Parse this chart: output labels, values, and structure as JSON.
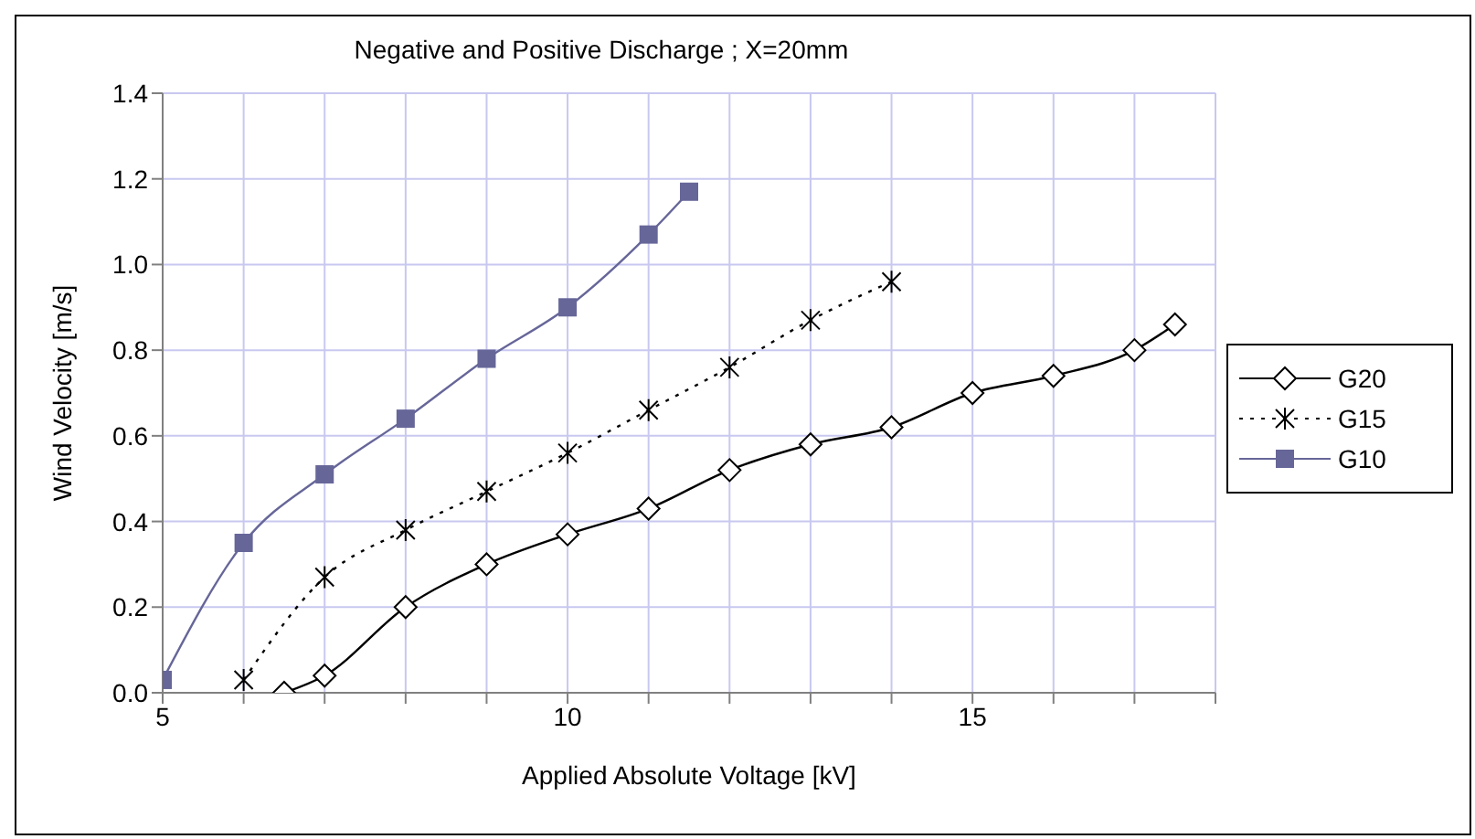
{
  "chart_data": {
    "type": "line",
    "title": "Negative and Positive Discharge ; X=20mm",
    "xlabel": "Applied Absolute Voltage [kV]",
    "ylabel": "Wind  Velocity [m/s]",
    "xlim": [
      5,
      18
    ],
    "xticks": [
      5,
      {
        "value": 6,
        "label": null
      },
      {
        "value": 7,
        "label": null
      },
      {
        "value": 8,
        "label": null
      },
      {
        "value": 9,
        "label": null
      },
      10,
      {
        "value": 11,
        "label": null
      },
      {
        "value": 12,
        "label": null
      },
      {
        "value": 13,
        "label": null
      },
      {
        "value": 14,
        "label": null
      },
      15,
      {
        "value": 16,
        "label": null
      },
      {
        "value": 17,
        "label": null
      },
      {
        "value": 18,
        "label": null
      }
    ],
    "ylim": [
      0,
      1.4
    ],
    "yticks": [
      {
        "value": 0,
        "label": "0.0"
      },
      {
        "value": 0.2,
        "label": "0.2"
      },
      {
        "value": 0.4,
        "label": "0.4"
      },
      {
        "value": 0.6,
        "label": "0.6"
      },
      {
        "value": 0.8,
        "label": "0.8"
      },
      {
        "value": 1,
        "label": "1.0"
      },
      {
        "value": 1.2,
        "label": "1.2"
      },
      {
        "value": 1.4,
        "label": "1.4"
      }
    ],
    "grid": true,
    "legend": "right",
    "series": [
      {
        "name": "G20",
        "color": "#000000",
        "marker": "diamond",
        "line_style": "solid",
        "x": [
          6.5,
          7,
          8,
          9,
          10,
          11,
          12,
          13,
          14,
          15,
          16,
          17,
          17.5
        ],
        "values": [
          0.0,
          0.04,
          0.2,
          0.3,
          0.37,
          0.43,
          0.52,
          0.58,
          0.62,
          0.7,
          0.74,
          0.8,
          0.86
        ]
      },
      {
        "name": "G15",
        "color": "#000000",
        "marker": "cross",
        "line_style": "dotted",
        "x": [
          6,
          7,
          8,
          9,
          10,
          11,
          12,
          13,
          14
        ],
        "values": [
          0.03,
          0.27,
          0.38,
          0.47,
          0.56,
          0.66,
          0.76,
          0.87,
          0.96
        ]
      },
      {
        "name": "G10",
        "color": "#666699",
        "marker": "square",
        "line_style": "solid",
        "x": [
          5,
          6,
          7,
          8,
          9,
          10,
          11,
          11.5
        ],
        "values": [
          0.03,
          0.35,
          0.51,
          0.64,
          0.78,
          0.9,
          1.07,
          1.17
        ]
      }
    ]
  }
}
